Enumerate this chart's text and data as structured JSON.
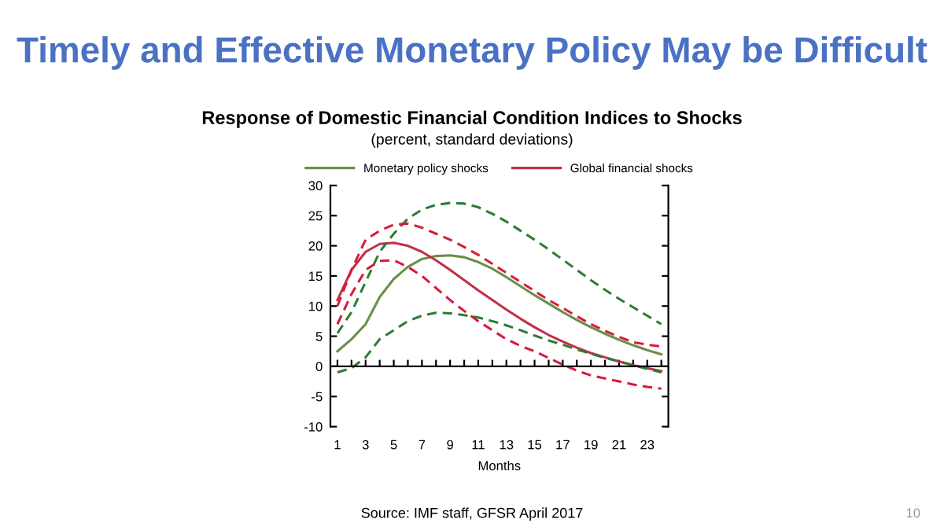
{
  "chart_data": {
    "type": "line",
    "title": "Timely and Effective Monetary Policy May be Difficult",
    "subtitle": "Response of Domestic Financial Condition Indices to Shocks\n(percent, standard deviations)",
    "xlabel": "Months",
    "annotations": [
      "Source: IMF staff, GFSR April 2017",
      "10"
    ],
    "x": [
      1,
      2,
      3,
      4,
      5,
      6,
      7,
      8,
      9,
      10,
      11,
      12,
      13,
      14,
      15,
      16,
      17,
      18,
      19,
      20,
      21,
      22,
      23,
      24
    ],
    "series": [
      {
        "name": "Monetary policy shocks",
        "color": "#6a8f4a",
        "line_style": "solid",
        "values": [
          2.5,
          4.5,
          7,
          11.5,
          14.5,
          16.5,
          17.8,
          18.3,
          18.4,
          18.1,
          17.3,
          16.2,
          14.8,
          13.3,
          11.8,
          10.4,
          9,
          7.7,
          6.5,
          5.4,
          4.4,
          3.5,
          2.7,
          2
        ]
      },
      {
        "name": "Global financial shocks",
        "color": "#c0304a",
        "line_style": "solid",
        "values": [
          11,
          16,
          19,
          20.3,
          20.5,
          20,
          19,
          17.6,
          16,
          14.3,
          12.6,
          11,
          9.4,
          7.9,
          6.5,
          5.2,
          4.1,
          3.1,
          2.2,
          1.5,
          0.8,
          0.2,
          -0.3,
          -0.8
        ]
      },
      {
        "color": "#2e7d32",
        "line_style": "dashed",
        "values": [
          5.5,
          9,
          14,
          19,
          22,
          24.5,
          26,
          26.8,
          27.1,
          27,
          26.4,
          25.3,
          24,
          22.5,
          21,
          19.4,
          17.7,
          16,
          14.3,
          12.7,
          11.2,
          9.8,
          8.4,
          7
        ]
      },
      {
        "color": "#2e7d32",
        "line_style": "dashed",
        "values": [
          -1,
          -0.3,
          1.5,
          4.5,
          6,
          7.5,
          8.4,
          8.9,
          8.8,
          8.5,
          8.1,
          7.5,
          6.8,
          6,
          5.1,
          4.3,
          3.6,
          2.8,
          2.1,
          1.4,
          0.8,
          0.2,
          -0.4,
          -1
        ]
      },
      {
        "color": "#d81b3c",
        "line_style": "dashed",
        "values": [
          10,
          16,
          21,
          22.5,
          23.5,
          23.7,
          23,
          22,
          21,
          19.8,
          18.5,
          17,
          15.5,
          14,
          12.5,
          11,
          9.7,
          8.3,
          7,
          5.9,
          4.9,
          4,
          3.6,
          3.3
        ]
      },
      {
        "color": "#d81b3c",
        "line_style": "dashed",
        "values": [
          7,
          12,
          16,
          17.5,
          17.6,
          16.5,
          15,
          13,
          11,
          9.2,
          7.5,
          6,
          4.5,
          3.4,
          2.5,
          1.4,
          0.3,
          -0.7,
          -1.5,
          -2,
          -2.5,
          -3,
          -3.4,
          -3.7
        ]
      }
    ],
    "xlim": [
      0.5,
      24.5
    ],
    "xticks": [
      1,
      {
        "value": 2,
        "label": null
      },
      3,
      {
        "value": 4,
        "label": null
      },
      5,
      {
        "value": 6,
        "label": null
      },
      7,
      {
        "value": 8,
        "label": null
      },
      9,
      {
        "value": 10,
        "label": null
      },
      11,
      {
        "value": 12,
        "label": null
      },
      13,
      {
        "value": 14,
        "label": null
      },
      15,
      {
        "value": 16,
        "label": null
      },
      17,
      {
        "value": 18,
        "label": null
      },
      19,
      {
        "value": 20,
        "label": null
      },
      21,
      {
        "value": 22,
        "label": null
      },
      23,
      {
        "value": 24,
        "label": null
      }
    ],
    "ylim": [
      -10,
      30
    ],
    "yticks": [
      -10,
      -5,
      0,
      5,
      10,
      15,
      20,
      25,
      30
    ],
    "legend": "top",
    "marker": "none"
  }
}
